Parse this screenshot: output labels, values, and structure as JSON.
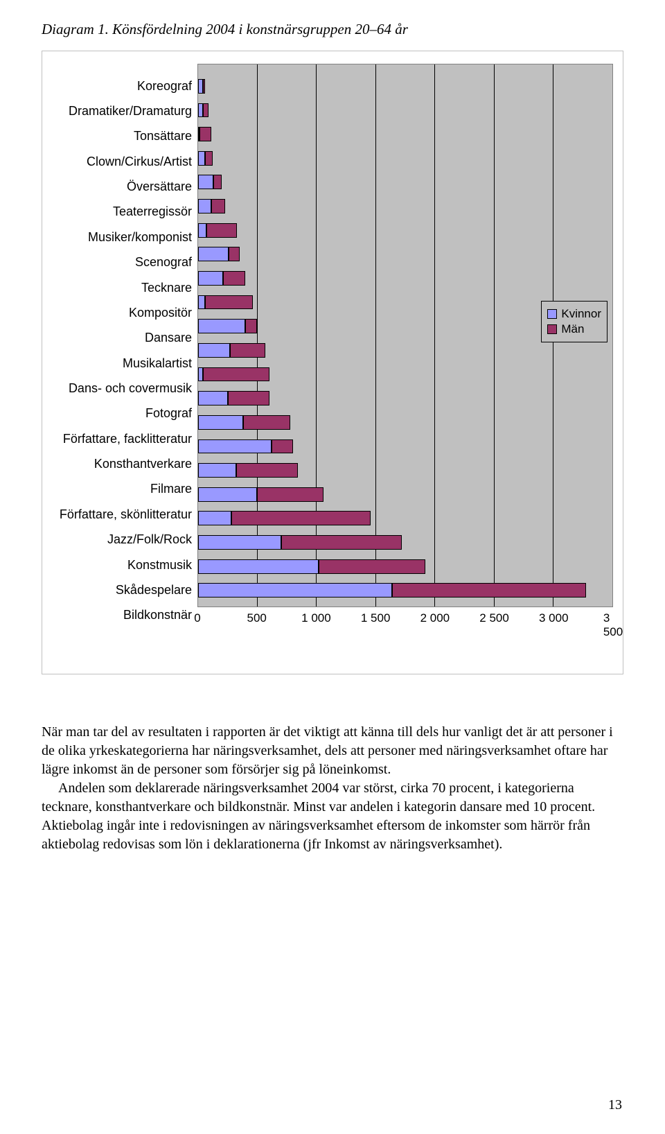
{
  "title": "Diagram 1. Könsfördelning 2004 i konstnärsgruppen 20–64 år",
  "chart": {
    "type": "stacked-horizontal-bar",
    "background_color": "#c0c0c0",
    "grid_color": "#000000",
    "xlim": [
      0,
      3500
    ],
    "xtick_step": 500,
    "xticks": [
      "0",
      "500",
      "1 000",
      "1 500",
      "2 000",
      "2 500",
      "3 000",
      "3 500"
    ],
    "series_colors": {
      "kvinnor": "#9999ff",
      "man": "#993366"
    },
    "legend": {
      "items": [
        {
          "label": "Kvinnor",
          "color": "#9999ff"
        },
        {
          "label": "Män",
          "color": "#993366"
        }
      ]
    },
    "categories": [
      {
        "label": "Koreograf",
        "kvinnor": 40,
        "man": 20
      },
      {
        "label": "Dramatiker/Dramaturg",
        "kvinnor": 40,
        "man": 50
      },
      {
        "label": "Tonsättare",
        "kvinnor": 10,
        "man": 100
      },
      {
        "label": "Clown/Cirkus/Artist",
        "kvinnor": 60,
        "man": 60
      },
      {
        "label": "Översättare",
        "kvinnor": 130,
        "man": 70
      },
      {
        "label": "Teaterregissör",
        "kvinnor": 110,
        "man": 120
      },
      {
        "label": "Musiker/komponist",
        "kvinnor": 70,
        "man": 260
      },
      {
        "label": "Scenograf",
        "kvinnor": 260,
        "man": 90
      },
      {
        "label": "Tecknare",
        "kvinnor": 210,
        "man": 190
      },
      {
        "label": "Kompositör",
        "kvinnor": 60,
        "man": 400
      },
      {
        "label": "Dansare",
        "kvinnor": 400,
        "man": 100
      },
      {
        "label": "Musikalartist",
        "kvinnor": 270,
        "man": 300
      },
      {
        "label": "Dans- och covermusik",
        "kvinnor": 40,
        "man": 560
      },
      {
        "label": "Fotograf",
        "kvinnor": 250,
        "man": 350
      },
      {
        "label": "Författare, facklitteratur",
        "kvinnor": 380,
        "man": 400
      },
      {
        "label": "Konsthantverkare",
        "kvinnor": 620,
        "man": 180
      },
      {
        "label": "Filmare",
        "kvinnor": 320,
        "man": 520
      },
      {
        "label": "Författare, skönlitteratur",
        "kvinnor": 500,
        "man": 560
      },
      {
        "label": "Jazz/Folk/Rock",
        "kvinnor": 280,
        "man": 1180
      },
      {
        "label": "Konstmusik",
        "kvinnor": 700,
        "man": 1020
      },
      {
        "label": "Skådespelare",
        "kvinnor": 1020,
        "man": 900
      },
      {
        "label": "Bildkonstnär",
        "kvinnor": 1640,
        "man": 1640
      }
    ]
  },
  "paragraphs": [
    "När man tar del av resultaten i rapporten är det viktigt att känna till dels hur vanligt det är att personer i de olika yrkeskategorierna har näringsverksamhet, dels att personer med näringsverksamhet oftare har lägre inkomst än de personer som försörjer sig på löneinkomst.",
    "Andelen som deklarerade näringsverksamhet 2004 var störst, cirka 70 procent, i kategorierna tecknare, konsthantverkare och bildkonstnär. Minst var andelen i kategorin dansare med 10 procent. Aktiebolag ingår inte i redovisningen av näringsverksamhet eftersom de inkomster som härrör från aktiebolag redovisas som lön i deklarationerna (jfr Inkomst av näringsverksamhet)."
  ],
  "page_number": "13"
}
